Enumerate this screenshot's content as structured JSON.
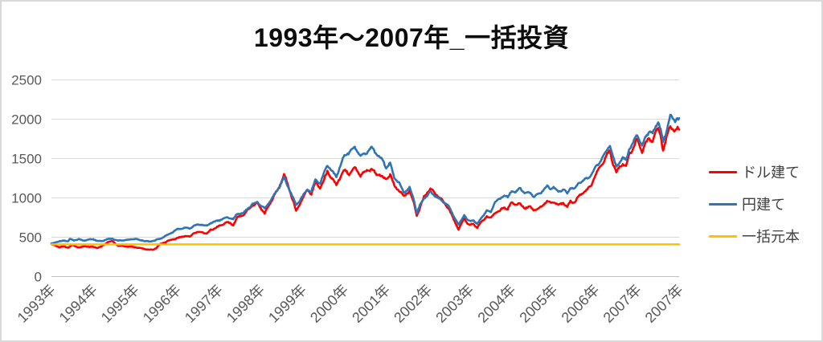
{
  "title": "1993年～2007年_一括投資",
  "legend": [
    {
      "id": "usd",
      "label": "ドル建て",
      "color": "#ff0000"
    },
    {
      "id": "jpy",
      "label": "円建て",
      "color": "#2e75b6"
    },
    {
      "id": "principal",
      "label": "一括元本",
      "color": "#ffc000"
    }
  ],
  "colors": {
    "gridline": "#d9d9d9",
    "zero_axis": "#bfbfbf",
    "axis_text": "#595959",
    "legend_text": "#404040",
    "title_text": "#0d0d0d",
    "background": "#ffffff",
    "border": "#d9d9d9"
  },
  "chart_data": {
    "type": "line",
    "title": "1993年～2007年_一括投資",
    "xlabel": "",
    "ylabel": "",
    "ylim": [
      0,
      2500
    ],
    "y_ticks": [
      0,
      500,
      1000,
      1500,
      2000,
      2500
    ],
    "x_tick_labels": [
      "1993年",
      "1994年",
      "1995年",
      "1996年",
      "1997年",
      "1998年",
      "1999年",
      "2000年",
      "2001年",
      "2002年",
      "2003年",
      "2004年",
      "2005年",
      "2006年",
      "2007年",
      "2007年"
    ],
    "x_tick_weeks": [
      0,
      52,
      104,
      156,
      208,
      260,
      312,
      364,
      416,
      468,
      520,
      572,
      624,
      676,
      728,
      780
    ],
    "x_unit": "weeks since start of 1993 (weekly data, ticks every 52 weeks)",
    "x_range_weeks": [
      0,
      780
    ],
    "grid": "horizontal",
    "legend_position": "right",
    "series": [
      {
        "id": "usd",
        "name": "ドル建て",
        "color": "#ff0000",
        "jitter": 0.016,
        "anchors": [
          [
            0,
            400
          ],
          [
            4,
            388
          ],
          [
            10,
            368
          ],
          [
            16,
            372
          ],
          [
            21,
            358
          ],
          [
            26,
            388
          ],
          [
            31,
            368
          ],
          [
            36,
            362
          ],
          [
            42,
            378
          ],
          [
            47,
            372
          ],
          [
            52,
            368
          ],
          [
            57,
            356
          ],
          [
            62,
            368
          ],
          [
            70,
            430
          ],
          [
            76,
            442
          ],
          [
            83,
            385
          ],
          [
            94,
            372
          ],
          [
            104,
            362
          ],
          [
            114,
            345
          ],
          [
            125,
            330
          ],
          [
            130,
            352
          ],
          [
            135,
            398
          ],
          [
            146,
            448
          ],
          [
            156,
            482
          ],
          [
            166,
            508
          ],
          [
            172,
            492
          ],
          [
            177,
            545
          ],
          [
            187,
            558
          ],
          [
            193,
            540
          ],
          [
            198,
            588
          ],
          [
            208,
            625
          ],
          [
            218,
            682
          ],
          [
            226,
            652
          ],
          [
            231,
            748
          ],
          [
            239,
            782
          ],
          [
            250,
            895
          ],
          [
            256,
            918
          ],
          [
            265,
            800
          ],
          [
            276,
            1010
          ],
          [
            283,
            1120
          ],
          [
            289,
            1292
          ],
          [
            296,
            1090
          ],
          [
            301,
            940
          ],
          [
            304,
            825
          ],
          [
            312,
            992
          ],
          [
            318,
            1085
          ],
          [
            323,
            1040
          ],
          [
            328,
            1185
          ],
          [
            334,
            1120
          ],
          [
            343,
            1332
          ],
          [
            349,
            1240
          ],
          [
            354,
            1152
          ],
          [
            360,
            1275
          ],
          [
            364,
            1335
          ],
          [
            370,
            1300
          ],
          [
            377,
            1388
          ],
          [
            384,
            1282
          ],
          [
            391,
            1330
          ],
          [
            398,
            1350
          ],
          [
            404,
            1285
          ],
          [
            408,
            1292
          ],
          [
            412,
            1255
          ],
          [
            416,
            1232
          ],
          [
            421,
            1300
          ],
          [
            426,
            1140
          ],
          [
            432,
            1085
          ],
          [
            438,
            1000
          ],
          [
            445,
            1088
          ],
          [
            450,
            940
          ],
          [
            454,
            772
          ],
          [
            458,
            870
          ],
          [
            463,
            1002
          ],
          [
            467,
            1058
          ],
          [
            471,
            1102
          ],
          [
            477,
            1045
          ],
          [
            484,
            988
          ],
          [
            490,
            905
          ],
          [
            494,
            852
          ],
          [
            499,
            735
          ],
          [
            506,
            588
          ],
          [
            509,
            650
          ],
          [
            513,
            732
          ],
          [
            517,
            668
          ],
          [
            520,
            645
          ],
          [
            524,
            668
          ],
          [
            529,
            618
          ],
          [
            534,
            680
          ],
          [
            541,
            755
          ],
          [
            546,
            728
          ],
          [
            551,
            800
          ],
          [
            557,
            825
          ],
          [
            562,
            880
          ],
          [
            567,
            852
          ],
          [
            572,
            932
          ],
          [
            577,
            905
          ],
          [
            582,
            908
          ],
          [
            588,
            862
          ],
          [
            595,
            882
          ],
          [
            599,
            842
          ],
          [
            606,
            858
          ],
          [
            611,
            905
          ],
          [
            616,
            945
          ],
          [
            620,
            920
          ],
          [
            624,
            938
          ],
          [
            630,
            902
          ],
          [
            636,
            935
          ],
          [
            641,
            878
          ],
          [
            645,
            952
          ],
          [
            650,
            928
          ],
          [
            655,
            1002
          ],
          [
            660,
            1048
          ],
          [
            666,
            1095
          ],
          [
            671,
            1165
          ],
          [
            676,
            1292
          ],
          [
            681,
            1380
          ],
          [
            686,
            1448
          ],
          [
            691,
            1545
          ],
          [
            694,
            1582
          ],
          [
            698,
            1420
          ],
          [
            702,
            1318
          ],
          [
            706,
            1388
          ],
          [
            710,
            1432
          ],
          [
            714,
            1392
          ],
          [
            718,
            1548
          ],
          [
            722,
            1612
          ],
          [
            726,
            1688
          ],
          [
            728,
            1725
          ],
          [
            731,
            1655
          ],
          [
            734,
            1575
          ],
          [
            738,
            1680
          ],
          [
            743,
            1758
          ],
          [
            747,
            1728
          ],
          [
            751,
            1828
          ],
          [
            754,
            1892
          ],
          [
            757,
            1795
          ],
          [
            760,
            1588
          ],
          [
            763,
            1680
          ],
          [
            766,
            1820
          ],
          [
            769,
            1912
          ],
          [
            772,
            1862
          ],
          [
            775,
            1822
          ],
          [
            778,
            1892
          ],
          [
            780,
            1868
          ]
        ]
      },
      {
        "id": "jpy",
        "name": "円建て",
        "color": "#2e75b6",
        "jitter": 0.013,
        "anchors": [
          [
            0,
            405
          ],
          [
            5,
            428
          ],
          [
            10,
            438
          ],
          [
            16,
            452
          ],
          [
            21,
            440
          ],
          [
            23,
            468
          ],
          [
            28,
            452
          ],
          [
            34,
            462
          ],
          [
            40,
            448
          ],
          [
            47,
            462
          ],
          [
            52,
            470
          ],
          [
            57,
            445
          ],
          [
            62,
            440
          ],
          [
            70,
            465
          ],
          [
            76,
            470
          ],
          [
            83,
            448
          ],
          [
            94,
            458
          ],
          [
            104,
            468
          ],
          [
            110,
            452
          ],
          [
            114,
            448
          ],
          [
            122,
            435
          ],
          [
            128,
            452
          ],
          [
            135,
            472
          ],
          [
            146,
            525
          ],
          [
            156,
            592
          ],
          [
            166,
            615
          ],
          [
            172,
            600
          ],
          [
            177,
            638
          ],
          [
            187,
            652
          ],
          [
            193,
            635
          ],
          [
            198,
            678
          ],
          [
            208,
            705
          ],
          [
            218,
            742
          ],
          [
            226,
            722
          ],
          [
            231,
            788
          ],
          [
            239,
            808
          ],
          [
            250,
            912
          ],
          [
            256,
            932
          ],
          [
            265,
            855
          ],
          [
            276,
            1022
          ],
          [
            283,
            1130
          ],
          [
            289,
            1242
          ],
          [
            296,
            1085
          ],
          [
            301,
            975
          ],
          [
            304,
            905
          ],
          [
            312,
            1012
          ],
          [
            318,
            1105
          ],
          [
            323,
            1065
          ],
          [
            328,
            1222
          ],
          [
            334,
            1175
          ],
          [
            343,
            1422
          ],
          [
            349,
            1330
          ],
          [
            354,
            1272
          ],
          [
            360,
            1420
          ],
          [
            364,
            1532
          ],
          [
            370,
            1562
          ],
          [
            377,
            1648
          ],
          [
            384,
            1535
          ],
          [
            391,
            1565
          ],
          [
            398,
            1632
          ],
          [
            404,
            1540
          ],
          [
            408,
            1505
          ],
          [
            412,
            1465
          ],
          [
            416,
            1385
          ],
          [
            421,
            1440
          ],
          [
            426,
            1255
          ],
          [
            432,
            1180
          ],
          [
            438,
            1052
          ],
          [
            445,
            1122
          ],
          [
            450,
            985
          ],
          [
            454,
            800
          ],
          [
            458,
            905
          ],
          [
            463,
            988
          ],
          [
            467,
            1025
          ],
          [
            471,
            1062
          ],
          [
            477,
            1010
          ],
          [
            484,
            965
          ],
          [
            490,
            922
          ],
          [
            494,
            888
          ],
          [
            499,
            778
          ],
          [
            506,
            648
          ],
          [
            509,
            700
          ],
          [
            513,
            772
          ],
          [
            517,
            705
          ],
          [
            520,
            692
          ],
          [
            524,
            715
          ],
          [
            529,
            658
          ],
          [
            534,
            738
          ],
          [
            541,
            828
          ],
          [
            546,
            808
          ],
          [
            551,
            932
          ],
          [
            557,
            972
          ],
          [
            562,
            1028
          ],
          [
            567,
            1002
          ],
          [
            572,
            1092
          ],
          [
            577,
            1058
          ],
          [
            582,
            1122
          ],
          [
            588,
            1048
          ],
          [
            595,
            1062
          ],
          [
            599,
            1008
          ],
          [
            606,
            1048
          ],
          [
            611,
            1092
          ],
          [
            616,
            1138
          ],
          [
            620,
            1108
          ],
          [
            624,
            1122
          ],
          [
            630,
            1062
          ],
          [
            636,
            1108
          ],
          [
            641,
            1052
          ],
          [
            645,
            1132
          ],
          [
            650,
            1108
          ],
          [
            655,
            1178
          ],
          [
            660,
            1202
          ],
          [
            666,
            1238
          ],
          [
            671,
            1288
          ],
          [
            676,
            1382
          ],
          [
            681,
            1452
          ],
          [
            686,
            1528
          ],
          [
            691,
            1615
          ],
          [
            694,
            1658
          ],
          [
            698,
            1492
          ],
          [
            702,
            1385
          ],
          [
            706,
            1452
          ],
          [
            710,
            1502
          ],
          [
            714,
            1472
          ],
          [
            718,
            1622
          ],
          [
            722,
            1682
          ],
          [
            726,
            1758
          ],
          [
            728,
            1792
          ],
          [
            731,
            1725
          ],
          [
            734,
            1652
          ],
          [
            738,
            1752
          ],
          [
            743,
            1842
          ],
          [
            747,
            1812
          ],
          [
            751,
            1902
          ],
          [
            754,
            1975
          ],
          [
            757,
            1878
          ],
          [
            760,
            1702
          ],
          [
            763,
            1782
          ],
          [
            766,
            1922
          ],
          [
            769,
            2055
          ],
          [
            772,
            1985
          ],
          [
            775,
            1958
          ],
          [
            778,
            2018
          ],
          [
            780,
            2002
          ]
        ]
      },
      {
        "id": "principal",
        "name": "一括元本",
        "color": "#ffc000",
        "jitter": 0,
        "anchors": [
          [
            0,
            400
          ],
          [
            780,
            400
          ]
        ]
      }
    ]
  }
}
